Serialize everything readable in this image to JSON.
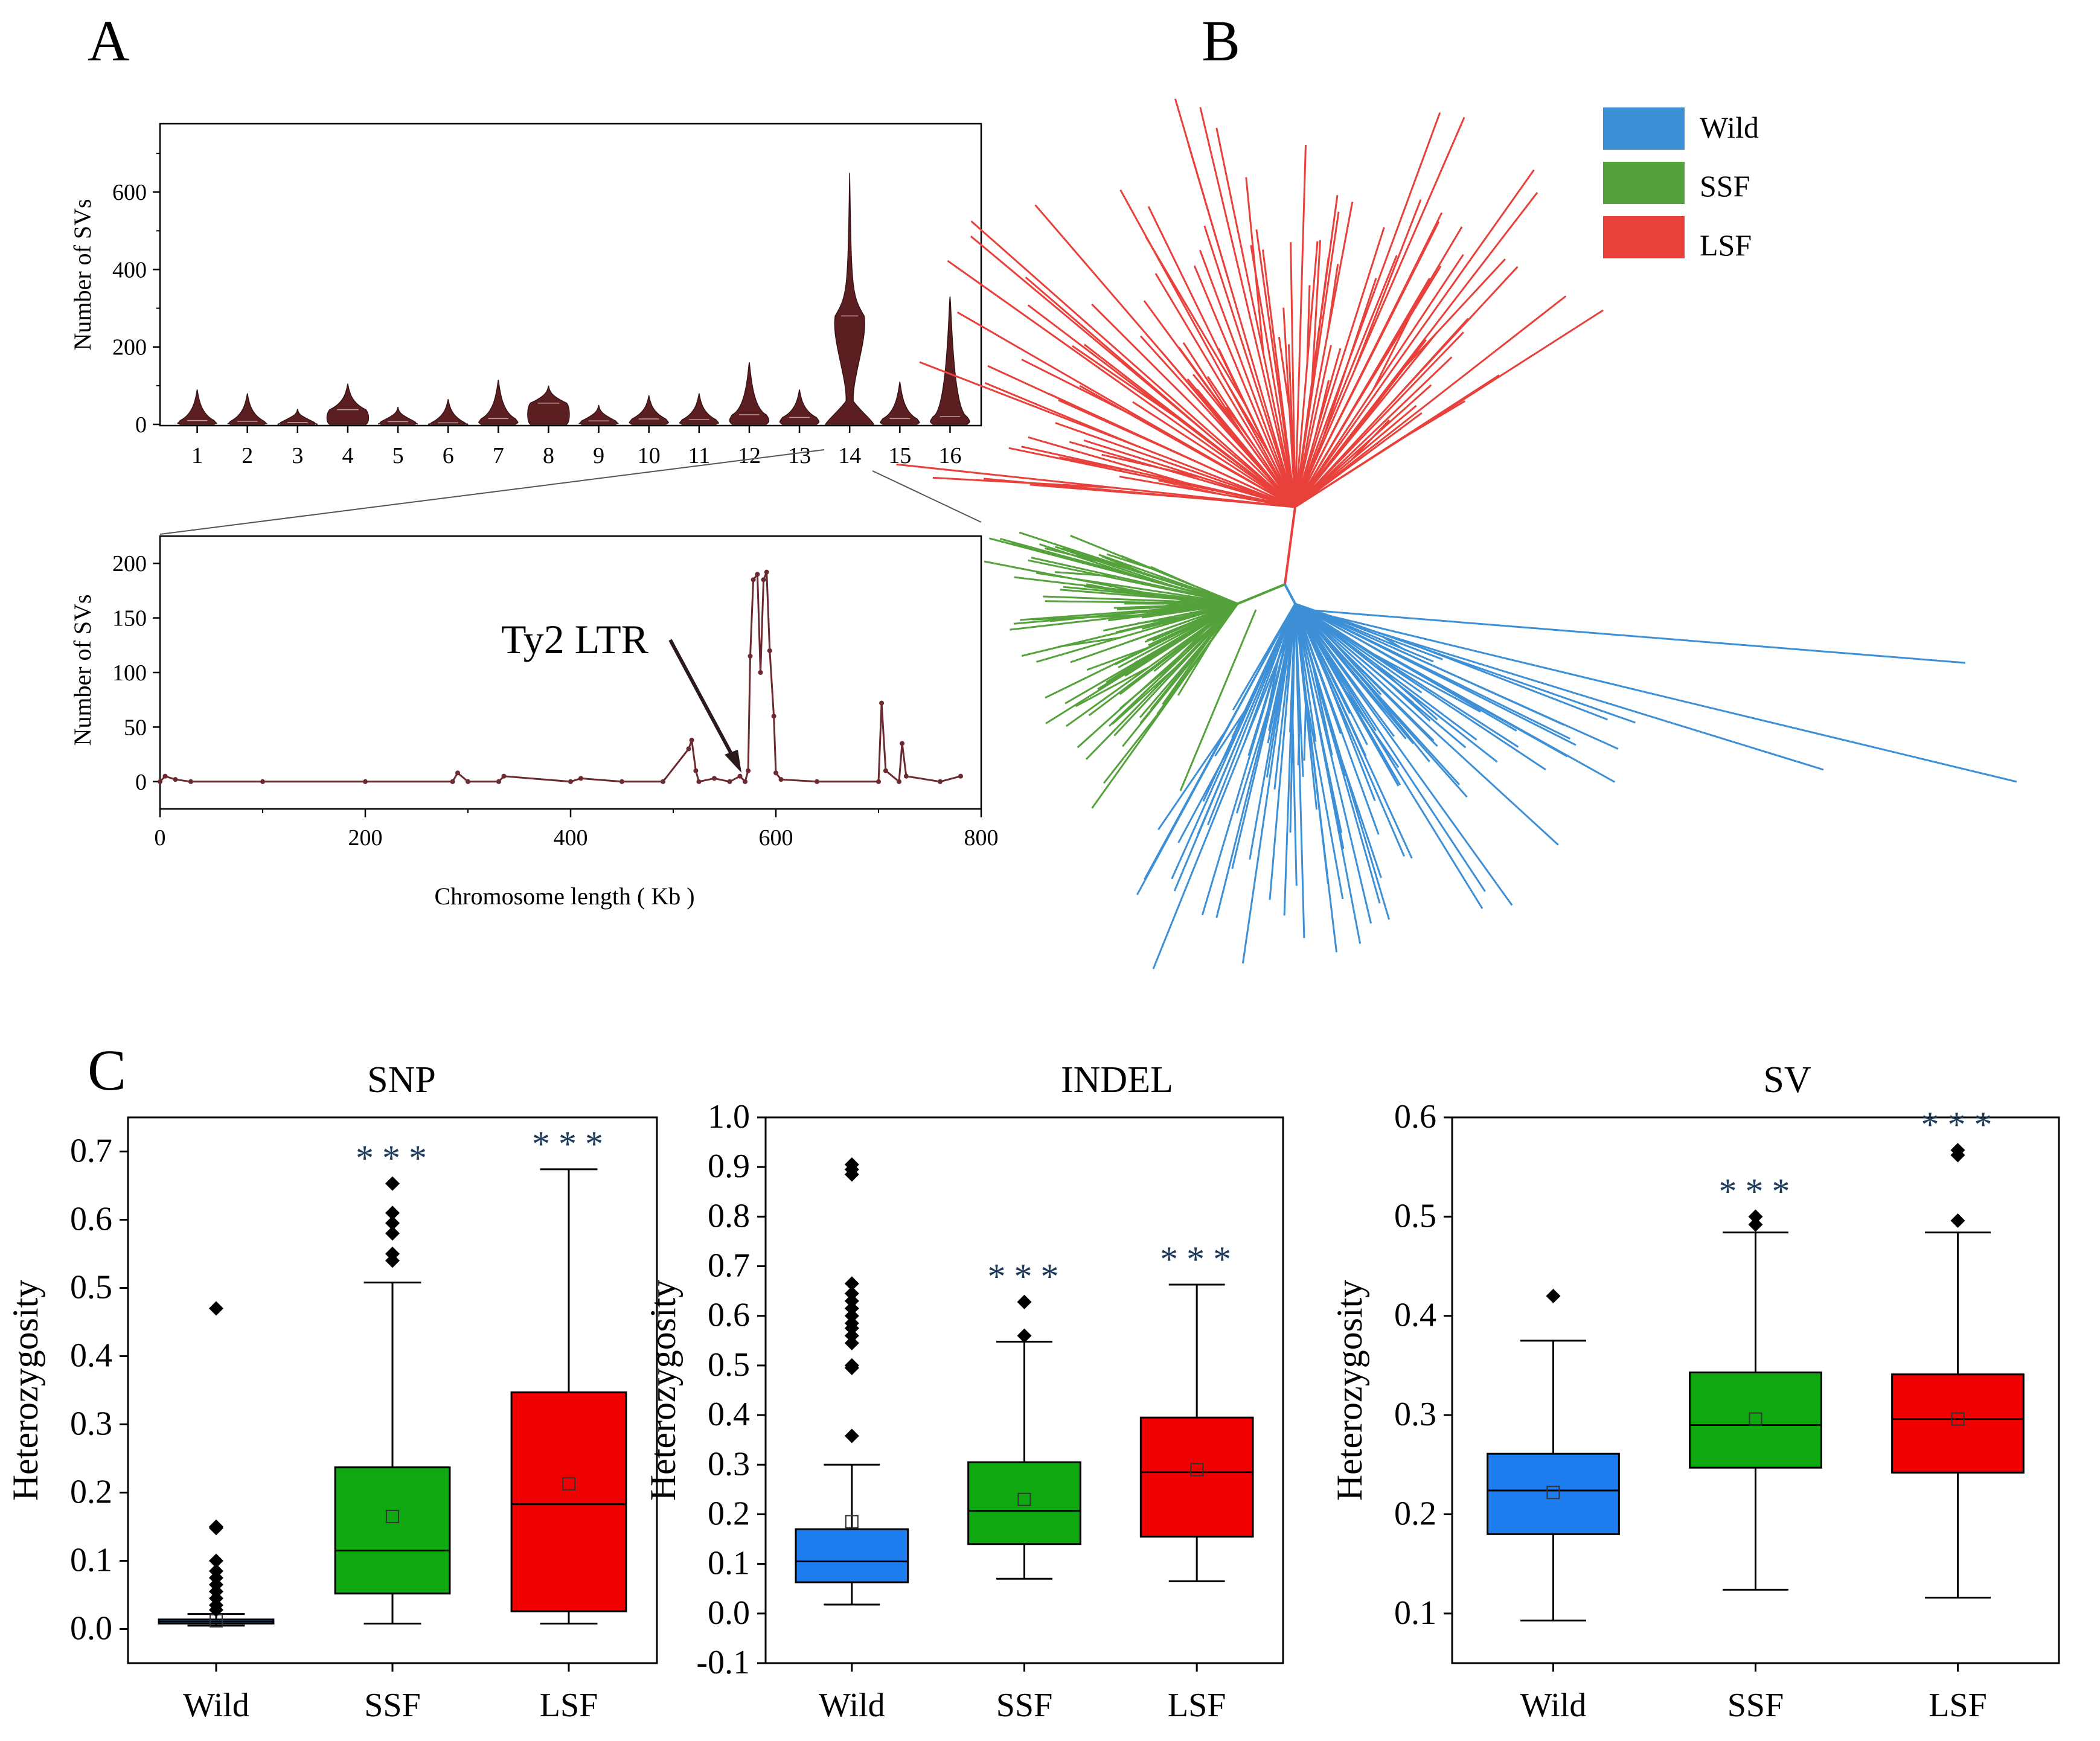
{
  "panels": {
    "a": "A",
    "b": "B",
    "c": "C"
  },
  "colors": {
    "violin": "#5b1f22",
    "trace": "#6b2a2f",
    "Wild": "#1e7ef0",
    "SSF": "#10a810",
    "LSF": "#f00000",
    "tree_wild": "#3d8fd6",
    "tree_ssf": "#55a23d",
    "tree_lsf": "#e8413b",
    "stars": "#1f3b5c"
  },
  "chart_data": [
    {
      "id": "A_top",
      "type": "violin",
      "ylabel": "Number of SVs",
      "ylim": [
        0,
        750
      ],
      "yticks": [
        0,
        200,
        400,
        600
      ],
      "categories": [
        "1",
        "2",
        "3",
        "4",
        "5",
        "6",
        "7",
        "8",
        "9",
        "10",
        "11",
        "12",
        "13",
        "14",
        "15",
        "16"
      ],
      "max": [
        90,
        80,
        40,
        105,
        45,
        65,
        115,
        100,
        50,
        75,
        80,
        160,
        90,
        650,
        110,
        330
      ],
      "median": [
        10,
        8,
        5,
        38,
        7,
        4,
        15,
        55,
        9,
        14,
        12,
        25,
        18,
        280,
        15,
        20
      ]
    },
    {
      "id": "A_bottom",
      "type": "line",
      "ylabel": "Number of SVs",
      "xlabel": "Chromosome length ( Kb )",
      "xlim": [
        0,
        800
      ],
      "ylim": [
        -25,
        225
      ],
      "xticks": [
        0,
        200,
        400,
        600,
        800
      ],
      "yticks": [
        0,
        50,
        100,
        150,
        200
      ],
      "annotation": {
        "text": "Ty2 LTR",
        "x": 573,
        "y": 10
      },
      "x": [
        0,
        5,
        15,
        30,
        100,
        200,
        285,
        290,
        300,
        330,
        335,
        400,
        410,
        450,
        490,
        515,
        518,
        522,
        525,
        540,
        555,
        565,
        570,
        573,
        575,
        578,
        582,
        585,
        588,
        591,
        594,
        598,
        600,
        605,
        640,
        700,
        703,
        707,
        720,
        723,
        727,
        760,
        780
      ],
      "y": [
        0,
        5,
        2,
        0,
        0,
        0,
        0,
        8,
        0,
        0,
        5,
        0,
        3,
        0,
        0,
        30,
        38,
        10,
        0,
        3,
        0,
        5,
        0,
        10,
        115,
        185,
        190,
        100,
        185,
        192,
        120,
        60,
        8,
        2,
        0,
        0,
        72,
        10,
        0,
        35,
        5,
        0,
        5
      ]
    },
    {
      "id": "C_SNP",
      "type": "box",
      "title": "SNP",
      "ylabel": "Heterozygosity",
      "categories": [
        "Wild",
        "SSF",
        "LSF"
      ],
      "ylim": [
        -0.05,
        0.75
      ],
      "yticks": [
        "0.0",
        "0.1",
        "0.2",
        "0.3",
        "0.4",
        "0.5",
        "0.6",
        "0.7"
      ],
      "boxes": [
        {
          "name": "Wild",
          "min": 0.005,
          "q1": 0.008,
          "median": 0.011,
          "q3": 0.014,
          "max": 0.022,
          "mean": 0.012,
          "outliers": [
            0.47,
            0.15,
            0.148,
            0.1,
            0.085,
            0.075,
            0.065,
            0.055,
            0.045,
            0.035,
            0.028
          ],
          "sig": ""
        },
        {
          "name": "SSF",
          "min": 0.008,
          "q1": 0.052,
          "median": 0.115,
          "q3": 0.237,
          "max": 0.508,
          "mean": 0.165,
          "outliers": [
            0.653,
            0.61,
            0.595,
            0.58,
            0.55,
            0.54
          ],
          "sig": "***"
        },
        {
          "name": "LSF",
          "min": 0.008,
          "q1": 0.026,
          "median": 0.183,
          "q3": 0.347,
          "max": 0.674,
          "mean": 0.213,
          "outliers": [],
          "sig": "***"
        }
      ]
    },
    {
      "id": "C_INDEL",
      "type": "box",
      "title": "INDEL",
      "ylabel": "Heterozygosity",
      "categories": [
        "Wild",
        "SSF",
        "LSF"
      ],
      "ylim": [
        -0.1,
        1.0
      ],
      "yticks": [
        "-0.1",
        "0.0",
        "0.1",
        "0.2",
        "0.3",
        "0.4",
        "0.5",
        "0.6",
        "0.7",
        "0.8",
        "0.9",
        "1.0"
      ],
      "boxes": [
        {
          "name": "Wild",
          "min": 0.018,
          "q1": 0.063,
          "median": 0.105,
          "q3": 0.17,
          "max": 0.3,
          "mean": 0.185,
          "outliers": [
            0.905,
            0.895,
            0.885,
            0.665,
            0.645,
            0.63,
            0.615,
            0.6,
            0.585,
            0.575,
            0.56,
            0.545,
            0.5,
            0.495,
            0.358
          ],
          "sig": ""
        },
        {
          "name": "SSF",
          "min": 0.07,
          "q1": 0.14,
          "median": 0.207,
          "q3": 0.305,
          "max": 0.548,
          "mean": 0.23,
          "outliers": [
            0.628,
            0.56
          ],
          "sig": "***"
        },
        {
          "name": "LSF",
          "min": 0.065,
          "q1": 0.155,
          "median": 0.285,
          "q3": 0.395,
          "max": 0.663,
          "mean": 0.29,
          "outliers": [],
          "sig": "***"
        }
      ]
    },
    {
      "id": "C_SV",
      "type": "box",
      "title": "SV",
      "ylabel": "Heterozygosity",
      "categories": [
        "Wild",
        "SSF",
        "LSF"
      ],
      "ylim": [
        0.05,
        0.6
      ],
      "yticks": [
        "0.1",
        "0.2",
        "0.3",
        "0.4",
        "0.5",
        "0.6"
      ],
      "boxes": [
        {
          "name": "Wild",
          "min": 0.093,
          "q1": 0.18,
          "median": 0.224,
          "q3": 0.261,
          "max": 0.375,
          "mean": 0.222,
          "outliers": [
            0.42
          ],
          "sig": ""
        },
        {
          "name": "SSF",
          "min": 0.124,
          "q1": 0.247,
          "median": 0.29,
          "q3": 0.343,
          "max": 0.484,
          "mean": 0.296,
          "outliers": [
            0.5,
            0.492
          ],
          "sig": "***"
        },
        {
          "name": "LSF",
          "min": 0.116,
          "q1": 0.242,
          "median": 0.296,
          "q3": 0.341,
          "max": 0.484,
          "mean": 0.296,
          "outliers": [
            0.567,
            0.562,
            0.496
          ],
          "sig": "***"
        }
      ]
    }
  ],
  "tree": {
    "legend": [
      {
        "label": "Wild",
        "color": "#3d8fd6"
      },
      {
        "label": "SSF",
        "color": "#55a23d"
      },
      {
        "label": "LSF",
        "color": "#e8413b"
      }
    ]
  }
}
